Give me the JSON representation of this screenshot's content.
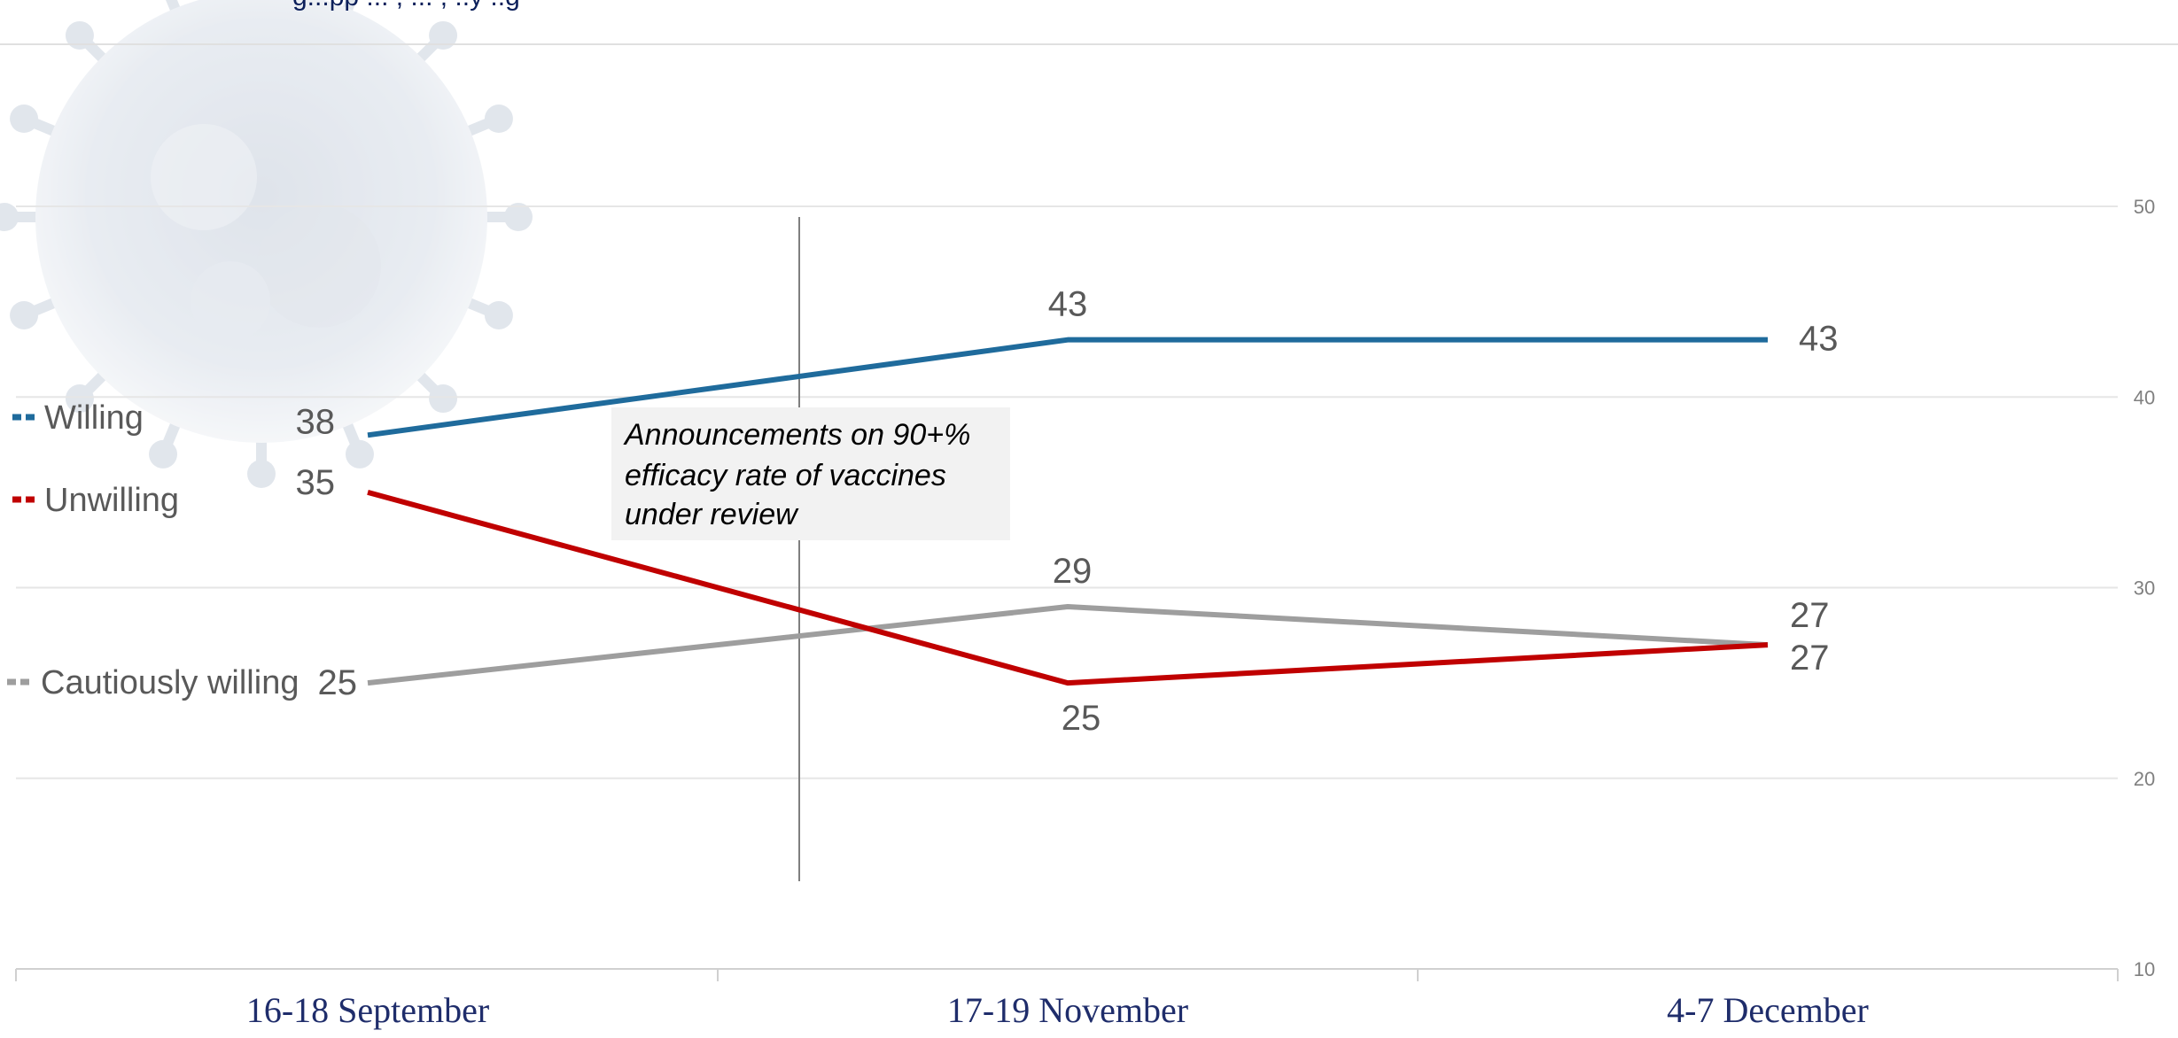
{
  "header": {
    "subtitle_fragment": "g...pp ... , ... , ..y ..g"
  },
  "colors": {
    "willing": "#1f6b9c",
    "unwilling": "#c00000",
    "cautiously_willing": "#9e9e9e",
    "gridline": "#e6e6e6",
    "annotation_bg": "#f2f2f2",
    "category_text": "#1f2d6b"
  },
  "annotation": {
    "lines": [
      "Announcements on 90+%",
      "efficacy rate of vaccines",
      "under review"
    ]
  },
  "chart_data": {
    "type": "line",
    "categories": [
      "16-18 September",
      "17-19 November",
      "4-7 December"
    ],
    "series": [
      {
        "name": "Willing",
        "values": [
          38,
          43,
          43
        ]
      },
      {
        "name": "Unwilling",
        "values": [
          35,
          25,
          27
        ]
      },
      {
        "name": "Cautiously willing",
        "values": [
          25,
          29,
          27
        ]
      }
    ],
    "ylim": [
      10,
      50
    ],
    "yticks": [
      10,
      20,
      30,
      40,
      50
    ],
    "y_axis_side": "right",
    "grid": true,
    "legend_position": "left",
    "data_labels": true,
    "title": "",
    "xlabel": "",
    "ylabel": ""
  }
}
